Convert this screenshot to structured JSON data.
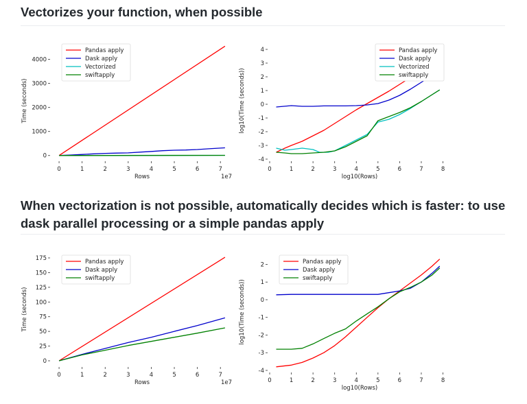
{
  "headings": {
    "top": "Vectorizes your function, when possible",
    "bottom": "When vectorization is not possible, automatically decides which is faster: to use dask parallel processing or a simple pandas apply"
  },
  "chart_data": [
    {
      "type": "line",
      "xlabel": "Rows",
      "ylabel": "Time (seconds)",
      "x_offset_text": "1e7",
      "xlim": [
        -0.3,
        7.5
      ],
      "ylim": [
        -150,
        4700
      ],
      "xticks": [
        0,
        1,
        2,
        3,
        4,
        5,
        6,
        7
      ],
      "xtick_labels": [
        "0",
        "1",
        "2",
        "3",
        "4",
        "5",
        "6",
        "7"
      ],
      "yticks": [
        0,
        1000,
        2000,
        3000,
        4000
      ],
      "ytick_labels": [
        "0",
        "1000",
        "2000",
        "3000",
        "4000"
      ],
      "legend": "top-left",
      "grid": false,
      "series": [
        {
          "name": "Pandas apply",
          "color": "#ff0000",
          "x": [
            0,
            7.2
          ],
          "y": [
            0,
            4550
          ]
        },
        {
          "name": "Dask apply",
          "color": "#0000cc",
          "x": [
            0,
            0.5,
            1,
            1.5,
            2,
            2.5,
            3,
            3.5,
            4,
            4.5,
            5,
            5.5,
            6,
            6.5,
            7.2
          ],
          "y": [
            0,
            20,
            45,
            70,
            90,
            100,
            110,
            140,
            170,
            200,
            220,
            230,
            250,
            280,
            320
          ]
        },
        {
          "name": "Vectorized",
          "color": "#00bfbf",
          "x": [
            0,
            7.2
          ],
          "y": [
            0,
            8
          ]
        },
        {
          "name": "swiftapply",
          "color": "#008000",
          "x": [
            0,
            7.2
          ],
          "y": [
            0,
            8
          ]
        }
      ]
    },
    {
      "type": "line",
      "xlabel": "log10(Rows)",
      "ylabel": "log10(Time (seconds))",
      "xlim": [
        0,
        8.3
      ],
      "ylim": [
        -4,
        4.5
      ],
      "xticks": [
        0,
        1,
        2,
        3,
        4,
        5,
        6,
        7,
        8
      ],
      "xtick_labels": [
        "0",
        "1",
        "2",
        "3",
        "4",
        "5",
        "6",
        "7",
        "8"
      ],
      "yticks": [
        -4,
        -3,
        -2,
        -1,
        0,
        1,
        2,
        3,
        4
      ],
      "ytick_labels": [
        "-4",
        "-3",
        "-2",
        "-1",
        "0",
        "1",
        "2",
        "3",
        "4"
      ],
      "legend": "top-right",
      "grid": false,
      "series": [
        {
          "name": "Pandas apply",
          "color": "#ff0000",
          "x": [
            0.3,
            0.7,
            1,
            1.5,
            2,
            2.5,
            3,
            3.5,
            4,
            4.5,
            5,
            5.5,
            6,
            6.5,
            7,
            7.5,
            7.85
          ],
          "y": [
            -3.5,
            -3.2,
            -3,
            -2.7,
            -2.3,
            -1.9,
            -1.4,
            -0.9,
            -0.4,
            0.05,
            0.5,
            0.95,
            1.45,
            1.95,
            2.45,
            2.95,
            3.3
          ]
        },
        {
          "name": "Dask apply",
          "color": "#0000cc",
          "x": [
            0.3,
            1,
            1.5,
            2,
            2.5,
            3,
            3.5,
            4,
            4.5,
            5,
            5.5,
            6,
            6.5,
            7,
            7.5,
            7.85
          ],
          "y": [
            -0.2,
            -0.1,
            -0.15,
            -0.15,
            -0.12,
            -0.12,
            -0.12,
            -0.1,
            -0.05,
            0.05,
            0.3,
            0.65,
            1.1,
            1.6,
            2.1,
            2.5
          ]
        },
        {
          "name": "Vectorized",
          "color": "#00bfbf",
          "x": [
            0.3,
            0.7,
            1,
            1.5,
            2,
            2.3,
            2.7,
            3,
            3.5,
            4,
            4.5,
            5,
            5.5,
            6,
            6.5,
            7,
            7.5,
            7.85
          ],
          "y": [
            -3.2,
            -3.35,
            -3.3,
            -3.2,
            -3.3,
            -3.5,
            -3.5,
            -3.4,
            -3.0,
            -2.6,
            -2.2,
            -1.3,
            -1.1,
            -0.75,
            -0.3,
            0.2,
            0.7,
            1.05
          ]
        },
        {
          "name": "swiftapply",
          "color": "#008000",
          "x": [
            0.3,
            0.7,
            1,
            1.5,
            2,
            2.5,
            3,
            3.5,
            4,
            4.5,
            5,
            5.5,
            6,
            6.5,
            7,
            7.5,
            7.85
          ],
          "y": [
            -3.5,
            -3.55,
            -3.6,
            -3.6,
            -3.55,
            -3.5,
            -3.4,
            -3.1,
            -2.7,
            -2.3,
            -1.2,
            -0.9,
            -0.6,
            -0.25,
            0.2,
            0.7,
            1.05
          ]
        }
      ]
    },
    {
      "type": "line",
      "xlabel": "Rows",
      "ylabel": "Time (seconds)",
      "x_offset_text": "1e7",
      "xlim": [
        -0.3,
        7.5
      ],
      "ylim": [
        -7,
        182
      ],
      "xticks": [
        0,
        1,
        2,
        3,
        4,
        5,
        6,
        7
      ],
      "xtick_labels": [
        "0",
        "1",
        "2",
        "3",
        "4",
        "5",
        "6",
        "7"
      ],
      "yticks": [
        0,
        25,
        50,
        75,
        100,
        125,
        150,
        175
      ],
      "ytick_labels": [
        "0",
        "25",
        "50",
        "75",
        "100",
        "125",
        "150",
        "175"
      ],
      "legend": "top-left",
      "grid": false,
      "series": [
        {
          "name": "Pandas apply",
          "color": "#ff0000",
          "x": [
            0,
            7.2
          ],
          "y": [
            0,
            176
          ]
        },
        {
          "name": "Dask apply",
          "color": "#0000cc",
          "x": [
            0,
            1,
            2,
            3,
            4,
            5,
            6,
            7.2
          ],
          "y": [
            0,
            11,
            21,
            31,
            40,
            50,
            60,
            73
          ]
        },
        {
          "name": "swiftapply",
          "color": "#008000",
          "x": [
            0,
            1,
            2,
            3,
            4,
            5,
            6,
            7.2
          ],
          "y": [
            0,
            10,
            18,
            26,
            33,
            40,
            47,
            56
          ]
        }
      ]
    },
    {
      "type": "line",
      "xlabel": "log10(Rows)",
      "ylabel": "log10(Time (seconds))",
      "xlim": [
        0,
        8.3
      ],
      "ylim": [
        -4,
        2.6
      ],
      "xticks": [
        0,
        1,
        2,
        3,
        4,
        5,
        6,
        7,
        8
      ],
      "xtick_labels": [
        "0",
        "1",
        "2",
        "3",
        "4",
        "5",
        "6",
        "7",
        "8"
      ],
      "yticks": [
        -4,
        -3,
        -2,
        -1,
        0,
        1,
        2
      ],
      "ytick_labels": [
        "-4",
        "-3",
        "-2",
        "-1",
        "0",
        "1",
        "2"
      ],
      "legend": "top-left",
      "grid": false,
      "series": [
        {
          "name": "Pandas apply",
          "color": "#ff0000",
          "x": [
            0.3,
            1,
            1.5,
            2,
            2.5,
            3,
            3.5,
            4,
            4.5,
            5,
            5.5,
            6,
            6.5,
            7,
            7.5,
            7.85
          ],
          "y": [
            -3.8,
            -3.7,
            -3.55,
            -3.3,
            -3.0,
            -2.6,
            -2.1,
            -1.55,
            -1.0,
            -0.45,
            0.05,
            0.5,
            0.95,
            1.4,
            1.9,
            2.3
          ]
        },
        {
          "name": "Dask apply",
          "color": "#0000cc",
          "x": [
            0.3,
            1,
            1.5,
            2,
            2.5,
            3,
            3.5,
            4,
            4.5,
            5,
            5.5,
            6,
            6.5,
            7,
            7.5,
            7.85
          ],
          "y": [
            0.28,
            0.3,
            0.3,
            0.3,
            0.3,
            0.3,
            0.3,
            0.3,
            0.3,
            0.3,
            0.4,
            0.5,
            0.65,
            1.0,
            1.5,
            1.9
          ]
        },
        {
          "name": "swiftapply",
          "color": "#008000",
          "x": [
            0.3,
            1,
            1.5,
            2,
            2.5,
            3,
            3.5,
            4,
            4.5,
            5,
            5.5,
            6,
            6.5,
            7,
            7.5,
            7.85
          ],
          "y": [
            -2.8,
            -2.8,
            -2.75,
            -2.5,
            -2.2,
            -1.9,
            -1.65,
            -1.2,
            -0.8,
            -0.4,
            0.05,
            0.45,
            0.7,
            1.0,
            1.4,
            1.8
          ]
        }
      ]
    }
  ]
}
